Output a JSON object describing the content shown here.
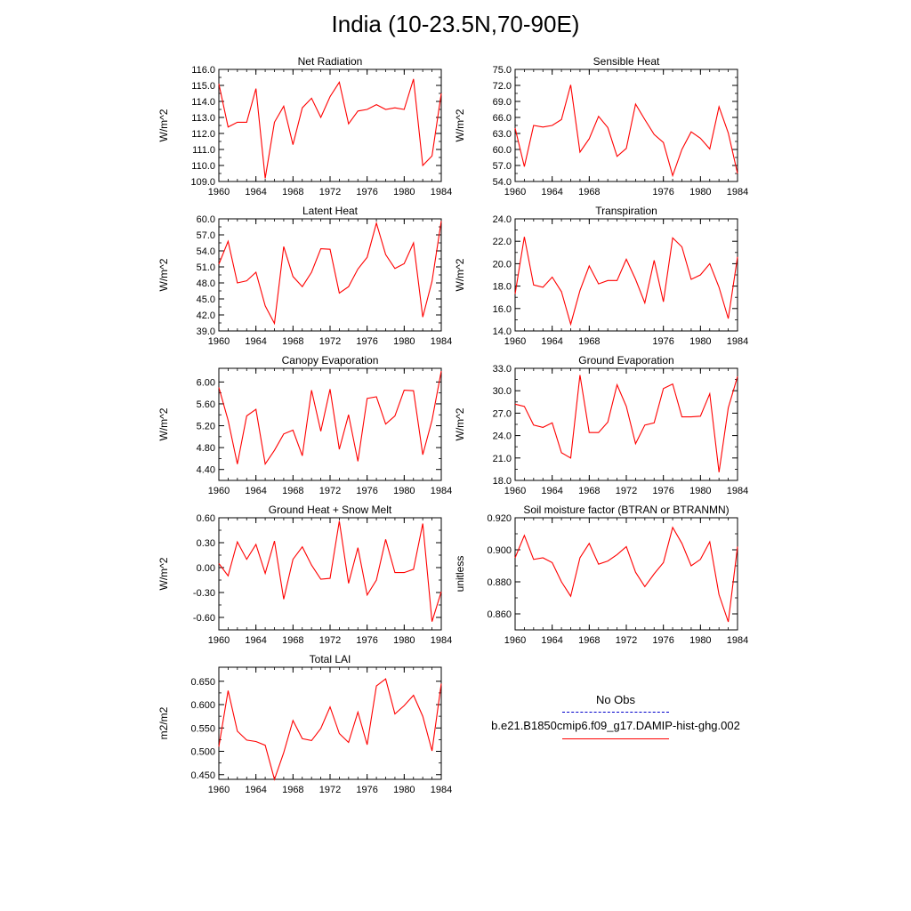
{
  "title": "India (10-23.5N,70-90E)",
  "colors": {
    "model": "#ff0000",
    "obs": "#0000cc",
    "axis": "#000000"
  },
  "legend": {
    "obs_label": "No Obs",
    "model_label": "b.e21.B1850cmip6.f09_g17.DAMIP-hist-ghg.002"
  },
  "chart_data": [
    {
      "type": "line",
      "title": "Net Radiation",
      "ylabel": "W/m^2",
      "xlim": [
        1960,
        1984
      ],
      "ylim": [
        109,
        116
      ],
      "decimals": 1,
      "x_ticks": [
        "1960",
        "1964",
        "1968",
        "1972",
        "1976",
        "1980",
        "1984"
      ],
      "y_ticks": [
        109,
        110,
        111,
        112,
        113,
        114,
        115,
        116
      ],
      "x": [
        1960,
        1961,
        1962,
        1963,
        1964,
        1965,
        1966,
        1967,
        1968,
        1969,
        1970,
        1971,
        1972,
        1973,
        1974,
        1975,
        1976,
        1977,
        1978,
        1979,
        1980,
        1981,
        1982,
        1983,
        1984
      ],
      "values": [
        115.1,
        112.4,
        112.7,
        112.7,
        114.8,
        109.2,
        112.7,
        113.7,
        111.3,
        113.6,
        114.2,
        113.0,
        114.3,
        115.2,
        112.6,
        113.4,
        113.5,
        113.8,
        113.5,
        113.6,
        113.5,
        115.4,
        110.0,
        110.6,
        114.5
      ]
    },
    {
      "type": "line",
      "title": "Sensible Heat",
      "ylabel": "W/m^2",
      "xlim": [
        1960,
        1984
      ],
      "ylim": [
        54,
        75
      ],
      "decimals": 1,
      "x_ticks": [
        "1960",
        "1964",
        "1968",
        "1976",
        "1980",
        "1984"
      ],
      "y_ticks": [
        54,
        57,
        60,
        63,
        66,
        69,
        72,
        75
      ],
      "x": [
        1960,
        1961,
        1962,
        1963,
        1964,
        1965,
        1966,
        1967,
        1968,
        1969,
        1970,
        1971,
        1972,
        1973,
        1974,
        1975,
        1976,
        1977,
        1978,
        1979,
        1980,
        1981,
        1982,
        1983,
        1984
      ],
      "values": [
        64.0,
        56.8,
        64.5,
        64.2,
        64.5,
        65.6,
        72.1,
        59.5,
        62.0,
        66.2,
        64.1,
        58.7,
        60.2,
        68.5,
        65.6,
        62.8,
        61.3,
        55.1,
        60.0,
        63.3,
        62.1,
        60.1,
        68.0,
        63.1,
        55.5
      ]
    },
    {
      "type": "line",
      "title": "Latent Heat",
      "ylabel": "W/m^2",
      "xlim": [
        1960,
        1984
      ],
      "ylim": [
        39,
        60
      ],
      "decimals": 1,
      "x_ticks": [
        "1960",
        "1964",
        "1968",
        "1972",
        "1976",
        "1980",
        "1984"
      ],
      "y_ticks": [
        39,
        42,
        45,
        48,
        51,
        54,
        57,
        60
      ],
      "x": [
        1960,
        1961,
        1962,
        1963,
        1964,
        1965,
        1966,
        1967,
        1968,
        1969,
        1970,
        1971,
        1972,
        1973,
        1974,
        1975,
        1976,
        1977,
        1978,
        1979,
        1980,
        1981,
        1982,
        1983,
        1984
      ],
      "values": [
        51.5,
        55.8,
        48.0,
        48.4,
        50.0,
        43.7,
        40.4,
        54.8,
        49.2,
        47.3,
        50.0,
        54.4,
        54.3,
        46.1,
        47.3,
        50.6,
        52.8,
        59.2,
        53.3,
        50.7,
        51.6,
        55.5,
        41.6,
        48.3,
        59.6
      ]
    },
    {
      "type": "line",
      "title": "Transpiration",
      "ylabel": "W/m^2",
      "xlim": [
        1960,
        1984
      ],
      "ylim": [
        14,
        24
      ],
      "decimals": 1,
      "x_ticks": [
        "1960",
        "1964",
        "1968",
        "1976",
        "1980",
        "1984"
      ],
      "y_ticks": [
        14,
        16,
        18,
        20,
        22,
        24
      ],
      "x": [
        1960,
        1961,
        1962,
        1963,
        1964,
        1965,
        1966,
        1967,
        1968,
        1969,
        1970,
        1971,
        1972,
        1973,
        1974,
        1975,
        1976,
        1977,
        1978,
        1979,
        1980,
        1981,
        1982,
        1983,
        1984
      ],
      "values": [
        17.3,
        22.4,
        18.1,
        17.9,
        18.8,
        17.5,
        14.6,
        17.6,
        19.8,
        18.2,
        18.5,
        18.5,
        20.4,
        18.6,
        16.5,
        20.3,
        16.6,
        22.3,
        21.5,
        18.6,
        19.0,
        20.0,
        17.9,
        15.1,
        20.6
      ]
    },
    {
      "type": "line",
      "title": "Canopy Evaporation",
      "ylabel": "W/m^2",
      "xlim": [
        1960,
        1984
      ],
      "ylim": [
        4.2,
        6.25
      ],
      "decimals": 2,
      "x_ticks": [
        "1960",
        "1964",
        "1968",
        "1972",
        "1976",
        "1980",
        "1984"
      ],
      "y_ticks": [
        4.4,
        4.8,
        5.2,
        5.6,
        6.0
      ],
      "x": [
        1960,
        1961,
        1962,
        1963,
        1964,
        1965,
        1966,
        1967,
        1968,
        1969,
        1970,
        1971,
        1972,
        1973,
        1974,
        1975,
        1976,
        1977,
        1978,
        1979,
        1980,
        1981,
        1982,
        1983,
        1984
      ],
      "values": [
        5.9,
        5.3,
        4.5,
        5.38,
        5.5,
        4.5,
        4.75,
        5.05,
        5.12,
        4.65,
        5.85,
        5.1,
        5.87,
        4.77,
        5.4,
        4.55,
        5.7,
        5.73,
        5.23,
        5.38,
        5.85,
        5.84,
        4.67,
        5.3,
        6.2
      ]
    },
    {
      "type": "line",
      "title": "Ground Evaporation",
      "ylabel": "W/m^2",
      "xlim": [
        1960,
        1984
      ],
      "ylim": [
        18,
        33
      ],
      "decimals": 1,
      "x_ticks": [
        "1960",
        "1964",
        "1968",
        "1972",
        "1976",
        "1980",
        "1984"
      ],
      "y_ticks": [
        18,
        21,
        24,
        27,
        30,
        33
      ],
      "x": [
        1960,
        1961,
        1962,
        1963,
        1964,
        1965,
        1966,
        1967,
        1968,
        1969,
        1970,
        1971,
        1972,
        1973,
        1974,
        1975,
        1976,
        1977,
        1978,
        1979,
        1980,
        1981,
        1982,
        1983,
        1984
      ],
      "values": [
        28.2,
        27.9,
        25.4,
        25.1,
        25.7,
        21.7,
        21.0,
        32.1,
        24.4,
        24.4,
        25.8,
        30.8,
        27.9,
        22.9,
        25.4,
        25.7,
        30.3,
        30.9,
        26.5,
        26.5,
        26.6,
        29.6,
        19.1,
        27.7,
        31.9
      ]
    },
    {
      "type": "line",
      "title": "Ground Heat + Snow Melt",
      "ylabel": "W/m^2",
      "xlim": [
        1960,
        1984
      ],
      "ylim": [
        -0.75,
        0.6
      ],
      "decimals": 2,
      "x_ticks": [
        "1960",
        "1964",
        "1968",
        "1972",
        "1976",
        "1980",
        "1984"
      ],
      "y_ticks": [
        -0.6,
        -0.3,
        0.0,
        0.3,
        0.6
      ],
      "x": [
        1960,
        1961,
        1962,
        1963,
        1964,
        1965,
        1966,
        1967,
        1968,
        1969,
        1970,
        1971,
        1972,
        1973,
        1974,
        1975,
        1976,
        1977,
        1978,
        1979,
        1980,
        1981,
        1982,
        1983,
        1984
      ],
      "values": [
        0.05,
        -0.1,
        0.31,
        0.1,
        0.28,
        -0.07,
        0.32,
        -0.38,
        0.1,
        0.25,
        0.03,
        -0.14,
        -0.13,
        0.56,
        -0.19,
        0.24,
        -0.33,
        -0.15,
        0.34,
        -0.06,
        -0.06,
        -0.02,
        0.53,
        -0.65,
        -0.29
      ]
    },
    {
      "type": "line",
      "title": "Soil moisture factor (BTRAN or BTRANMN)",
      "ylabel": "unitless",
      "xlim": [
        1960,
        1984
      ],
      "ylim": [
        0.85,
        0.92
      ],
      "decimals": 3,
      "x_ticks": [
        "1960",
        "1964",
        "1968",
        "1972",
        "1976",
        "1980",
        "1984"
      ],
      "y_ticks": [
        0.86,
        0.88,
        0.9,
        0.92
      ],
      "x": [
        1960,
        1961,
        1962,
        1963,
        1964,
        1965,
        1966,
        1967,
        1968,
        1969,
        1970,
        1971,
        1972,
        1973,
        1974,
        1975,
        1976,
        1977,
        1978,
        1979,
        1980,
        1981,
        1982,
        1983,
        1984
      ],
      "values": [
        0.895,
        0.909,
        0.894,
        0.895,
        0.892,
        0.88,
        0.871,
        0.895,
        0.904,
        0.891,
        0.893,
        0.897,
        0.902,
        0.886,
        0.877,
        0.885,
        0.892,
        0.914,
        0.904,
        0.89,
        0.894,
        0.905,
        0.872,
        0.855,
        0.902
      ]
    },
    {
      "type": "line",
      "title": "Total LAI",
      "ylabel": "m2/m2",
      "xlim": [
        1960,
        1984
      ],
      "ylim": [
        0.44,
        0.68
      ],
      "decimals": 3,
      "x_ticks": [
        "1960",
        "1964",
        "1968",
        "1972",
        "1976",
        "1980",
        "1984"
      ],
      "y_ticks": [
        0.45,
        0.5,
        0.55,
        0.6,
        0.65
      ],
      "x": [
        1960,
        1961,
        1962,
        1963,
        1964,
        1965,
        1966,
        1967,
        1968,
        1969,
        1970,
        1971,
        1972,
        1973,
        1974,
        1975,
        1976,
        1977,
        1978,
        1979,
        1980,
        1981,
        1982,
        1983,
        1984
      ],
      "values": [
        0.51,
        0.63,
        0.543,
        0.524,
        0.521,
        0.513,
        0.44,
        0.497,
        0.566,
        0.527,
        0.523,
        0.549,
        0.595,
        0.538,
        0.519,
        0.584,
        0.514,
        0.64,
        0.655,
        0.58,
        0.598,
        0.62,
        0.575,
        0.501,
        0.645
      ]
    }
  ]
}
